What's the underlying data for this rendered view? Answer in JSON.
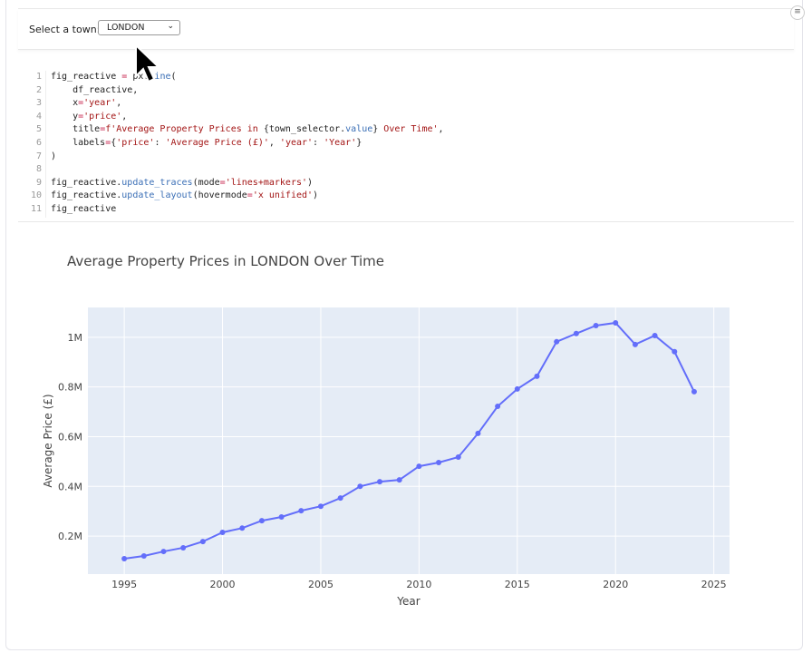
{
  "widget": {
    "label": "Select a town:",
    "selected": "LONDON"
  },
  "code": {
    "lines": [
      {
        "n": "1",
        "parts": [
          [
            "",
            "fig_reactive "
          ],
          [
            "op",
            "="
          ],
          [
            "",
            " px."
          ],
          [
            "fn",
            "line"
          ],
          [
            "",
            "("
          ]
        ]
      },
      {
        "n": "2",
        "parts": [
          [
            "",
            "    df_reactive,"
          ]
        ]
      },
      {
        "n": "3",
        "parts": [
          [
            "",
            "    x"
          ],
          [
            "op",
            "="
          ],
          [
            "str",
            "'year'"
          ],
          [
            "",
            ","
          ]
        ]
      },
      {
        "n": "4",
        "parts": [
          [
            "",
            "    y"
          ],
          [
            "op",
            "="
          ],
          [
            "str",
            "'price'"
          ],
          [
            "",
            ","
          ]
        ]
      },
      {
        "n": "5",
        "parts": [
          [
            "",
            "    title"
          ],
          [
            "op",
            "="
          ],
          [
            "str",
            "f'Average Property Prices in "
          ],
          [
            "",
            "{town_selector."
          ],
          [
            "fn",
            "value"
          ],
          [
            "",
            "}"
          ],
          [
            "str",
            " Over Time'"
          ],
          [
            "",
            ","
          ]
        ]
      },
      {
        "n": "6",
        "parts": [
          [
            "",
            "    labels"
          ],
          [
            "op",
            "="
          ],
          [
            "",
            "{"
          ],
          [
            "str",
            "'price'"
          ],
          [
            "",
            ": "
          ],
          [
            "str",
            "'Average Price (£)'"
          ],
          [
            "",
            ", "
          ],
          [
            "str",
            "'year'"
          ],
          [
            "",
            ": "
          ],
          [
            "str",
            "'Year'"
          ],
          [
            "",
            "}"
          ]
        ]
      },
      {
        "n": "7",
        "parts": [
          [
            "",
            ")"
          ]
        ]
      },
      {
        "n": "8",
        "parts": []
      },
      {
        "n": "9",
        "parts": [
          [
            "",
            "fig_reactive."
          ],
          [
            "fn",
            "update_traces"
          ],
          [
            "",
            "(mode"
          ],
          [
            "op",
            "="
          ],
          [
            "str",
            "'lines+markers'"
          ],
          [
            "",
            ")"
          ]
        ]
      },
      {
        "n": "10",
        "parts": [
          [
            "",
            "fig_reactive."
          ],
          [
            "fn",
            "update_layout"
          ],
          [
            "",
            "(hovermode"
          ],
          [
            "op",
            "="
          ],
          [
            "str",
            "'x unified'"
          ],
          [
            "",
            ")"
          ]
        ]
      },
      {
        "n": "11",
        "parts": [
          [
            "",
            "fig_reactive"
          ]
        ]
      }
    ]
  },
  "chart_data": {
    "type": "line",
    "title": "Average Property Prices in LONDON Over Time",
    "xlabel": "Year",
    "ylabel": "Average Price (£)",
    "x": [
      1995,
      1996,
      1997,
      1998,
      1999,
      2000,
      2001,
      2002,
      2003,
      2004,
      2005,
      2006,
      2007,
      2008,
      2009,
      2010,
      2011,
      2012,
      2013,
      2014,
      2015,
      2016,
      2017,
      2018,
      2019,
      2020,
      2021,
      2022,
      2023,
      2024
    ],
    "y": [
      109000,
      120000,
      138000,
      153000,
      178000,
      215000,
      232000,
      262000,
      277000,
      302000,
      320000,
      353000,
      400000,
      419000,
      426000,
      481000,
      496000,
      518000,
      613000,
      722000,
      792000,
      843000,
      982000,
      1015000,
      1047000,
      1058000,
      971000,
      1007000,
      942000,
      781000
    ],
    "xlim": [
      1993.15,
      2025.8
    ],
    "ylim": [
      47000,
      1120000
    ],
    "xticks": [
      1995,
      2000,
      2005,
      2010,
      2015,
      2020,
      2025
    ],
    "xtick_labels": [
      "1995",
      "2000",
      "2005",
      "2010",
      "2015",
      "2020",
      "2025"
    ],
    "yticks": [
      200000,
      400000,
      600000,
      800000,
      1000000
    ],
    "ytick_labels": [
      "0.2M",
      "0.4M",
      "0.6M",
      "0.8M",
      "1M"
    ],
    "grid": true,
    "mode": "lines+markers",
    "colors": {
      "line": "#636efa",
      "plot_bg": "#e5ecf6",
      "grid": "#ffffff"
    }
  }
}
